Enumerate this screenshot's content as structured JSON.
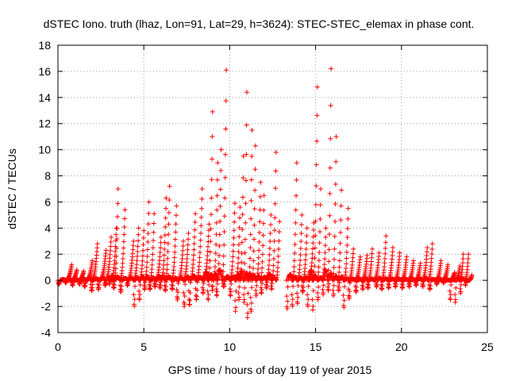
{
  "chart_data": {
    "type": "scatter",
    "title": "dSTEC Iono. truth (lhaz, Lon=91, Lat=29, h=3624): STEC-STEC_elemax in phase cont.",
    "xlabel": "GPS time / hours of day 119 of year 2015",
    "ylabel": "dSTEC  / TECUs",
    "xlim": [
      0,
      25
    ],
    "ylim": [
      -4,
      18
    ],
    "xticks": [
      0,
      5,
      10,
      15,
      20,
      25
    ],
    "yticks": [
      -4,
      -2,
      0,
      2,
      4,
      6,
      8,
      10,
      12,
      14,
      16,
      18
    ],
    "grid": true,
    "marker": "+",
    "color": "#ff0000",
    "series": [
      {
        "arcs": [
          [
            0.0,
            0.8,
            1.2,
            -0.3
          ],
          [
            0.4,
            1.1,
            0.8,
            -0.2
          ],
          [
            0.8,
            1.5,
            0.7,
            -0.4
          ],
          [
            1.2,
            2.0,
            1.5,
            -0.3
          ],
          [
            1.5,
            2.3,
            2.8,
            -0.5
          ],
          [
            1.9,
            2.8,
            2.3,
            -0.8
          ],
          [
            2.3,
            3.1,
            3.3,
            -0.7
          ],
          [
            2.7,
            3.4,
            4.0,
            -0.4
          ],
          [
            2.95,
            3.5,
            7.0,
            -0.3
          ],
          [
            3.2,
            3.9,
            5.4,
            -0.6
          ],
          [
            3.6,
            4.4,
            3.0,
            -0.9
          ],
          [
            4.0,
            4.7,
            4.0,
            -0.4
          ],
          [
            4.4,
            5.0,
            3.8,
            -2.0
          ],
          [
            4.7,
            5.3,
            6.0,
            -1.5
          ],
          [
            5.0,
            5.6,
            5.1,
            -0.7
          ],
          [
            5.3,
            6.0,
            3.3,
            -0.7
          ],
          [
            5.6,
            6.3,
            6.3,
            -0.5
          ],
          [
            5.9,
            6.5,
            7.2,
            -0.6
          ],
          [
            6.2,
            6.9,
            5.7,
            -0.8
          ],
          [
            6.6,
            7.3,
            3.0,
            -0.7
          ],
          [
            6.9,
            7.6,
            3.6,
            -1.5
          ],
          [
            7.3,
            8.0,
            5.1,
            -2.0
          ],
          [
            7.6,
            8.4,
            7.0,
            -1.9
          ],
          [
            8.0,
            8.8,
            4.3,
            -1.5
          ],
          [
            8.4,
            9.0,
            12.9,
            -1.0
          ],
          [
            8.7,
            9.3,
            9.0,
            -1.5
          ],
          [
            8.95,
            9.5,
            10.0,
            -0.8
          ],
          [
            9.2,
            9.8,
            16.1,
            -1.2
          ],
          [
            9.6,
            10.3,
            5.9,
            -0.5
          ],
          [
            10.0,
            10.6,
            5.6,
            -1.2
          ],
          [
            10.3,
            10.8,
            9.5,
            -2.4
          ],
          [
            10.5,
            11.0,
            14.4,
            -1.5
          ],
          [
            10.8,
            11.3,
            11.5,
            -1.7
          ],
          [
            11.0,
            11.5,
            10.3,
            -2.9
          ],
          [
            11.2,
            11.8,
            7.5,
            -2.4
          ],
          [
            11.5,
            12.0,
            6.5,
            -1.2
          ],
          [
            11.8,
            12.4,
            5.0,
            -1.0
          ],
          [
            12.1,
            12.7,
            9.8,
            -0.6
          ],
          [
            12.4,
            12.9,
            4.5,
            -0.7
          ],
          [
            13.3,
            13.9,
            9.0,
            -2.2
          ],
          [
            13.6,
            14.2,
            5.0,
            -2.0
          ],
          [
            13.9,
            14.5,
            4.0,
            -1.8
          ],
          [
            14.2,
            14.9,
            4.4,
            -0.9
          ],
          [
            14.5,
            15.1,
            14.8,
            -2.0
          ],
          [
            14.8,
            15.3,
            7.0,
            -2.3
          ],
          [
            15.1,
            15.6,
            4.0,
            -1.5
          ],
          [
            15.4,
            15.9,
            16.2,
            -1.1
          ],
          [
            15.7,
            16.2,
            11.0,
            -0.8
          ],
          [
            16.0,
            16.5,
            6.9,
            -1.2
          ],
          [
            16.3,
            16.9,
            5.5,
            -0.8
          ],
          [
            16.6,
            17.2,
            2.4,
            -2.1
          ],
          [
            16.9,
            17.6,
            1.8,
            -1.4
          ],
          [
            17.3,
            18.0,
            1.9,
            -0.9
          ],
          [
            17.7,
            18.3,
            2.4,
            -0.7
          ],
          [
            18.0,
            18.7,
            2.1,
            -0.6
          ],
          [
            18.5,
            19.1,
            3.4,
            -0.5
          ],
          [
            18.8,
            19.5,
            2.5,
            -0.7
          ],
          [
            19.2,
            19.9,
            2.1,
            -0.6
          ],
          [
            19.6,
            20.3,
            1.8,
            -0.5
          ],
          [
            20.0,
            20.7,
            1.5,
            -0.6
          ],
          [
            20.4,
            21.1,
            1.3,
            -0.5
          ],
          [
            20.8,
            21.5,
            2.5,
            -0.4
          ],
          [
            21.2,
            21.8,
            2.8,
            -0.5
          ],
          [
            21.6,
            22.3,
            1.5,
            -0.7
          ],
          [
            22.0,
            22.7,
            1.2,
            -0.3
          ],
          [
            22.4,
            23.1,
            0.6,
            -0.2
          ],
          [
            22.8,
            23.4,
            1.1,
            -1.5
          ],
          [
            23.1,
            23.6,
            2.0,
            -1.7
          ],
          [
            23.4,
            23.9,
            2.0,
            -1.0
          ],
          [
            23.7,
            24.1,
            0.4,
            -0.4
          ]
        ]
      }
    ]
  }
}
